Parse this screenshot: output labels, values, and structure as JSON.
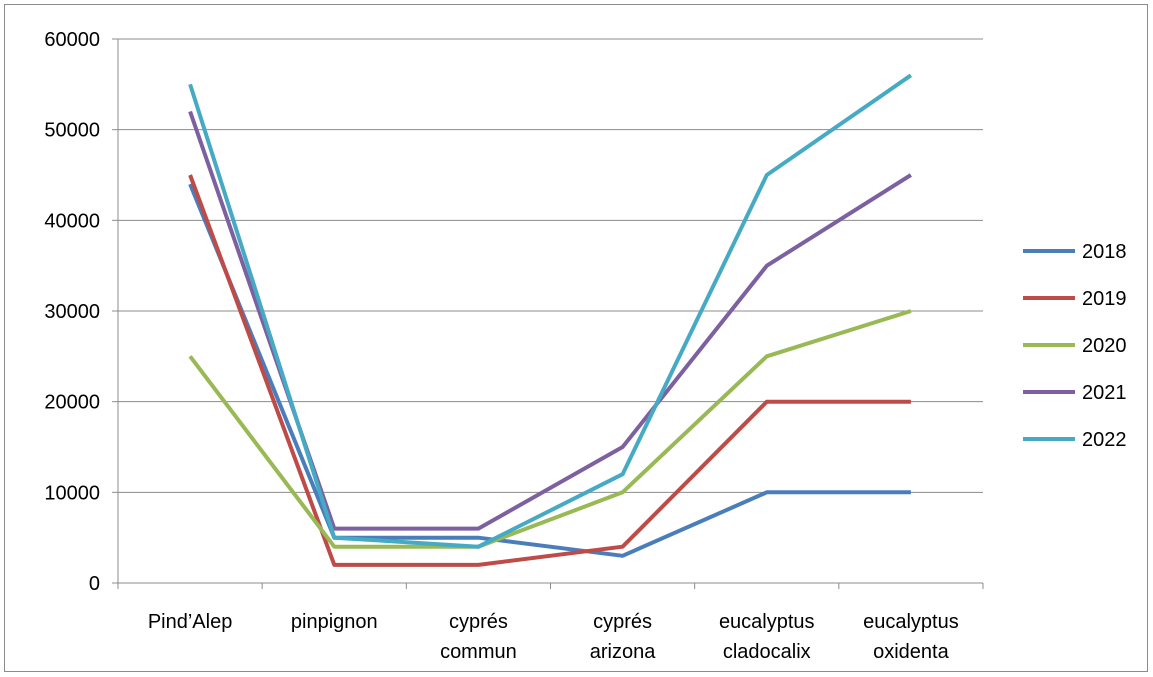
{
  "chart_data": {
    "type": "line",
    "title": "",
    "xlabel": "",
    "ylabel": "",
    "ylim": [
      0,
      60000
    ],
    "yticks": [
      0,
      10000,
      20000,
      30000,
      40000,
      50000,
      60000
    ],
    "grid": true,
    "legend_position": "right",
    "categories": [
      [
        "Pind’Alep"
      ],
      [
        "pinpignon"
      ],
      [
        "cyprés",
        "commun"
      ],
      [
        "cyprés",
        "arizona"
      ],
      [
        "eucalyptus",
        "cladocalix"
      ],
      [
        "eucalyptus",
        "oxidenta"
      ]
    ],
    "series": [
      {
        "name": "2018",
        "color": "#4a7ebb",
        "values": [
          44000,
          5000,
          5000,
          3000,
          10000,
          10000
        ]
      },
      {
        "name": "2019",
        "color": "#be4b48",
        "values": [
          45000,
          2000,
          2000,
          4000,
          20000,
          20000
        ]
      },
      {
        "name": "2020",
        "color": "#98b954",
        "values": [
          25000,
          4000,
          4000,
          10000,
          25000,
          30000
        ]
      },
      {
        "name": "2021",
        "color": "#7d60a0",
        "values": [
          52000,
          6000,
          6000,
          15000,
          35000,
          45000
        ]
      },
      {
        "name": "2022",
        "color": "#46aac5",
        "values": [
          55000,
          5000,
          4000,
          12000,
          45000,
          56000
        ]
      }
    ]
  }
}
